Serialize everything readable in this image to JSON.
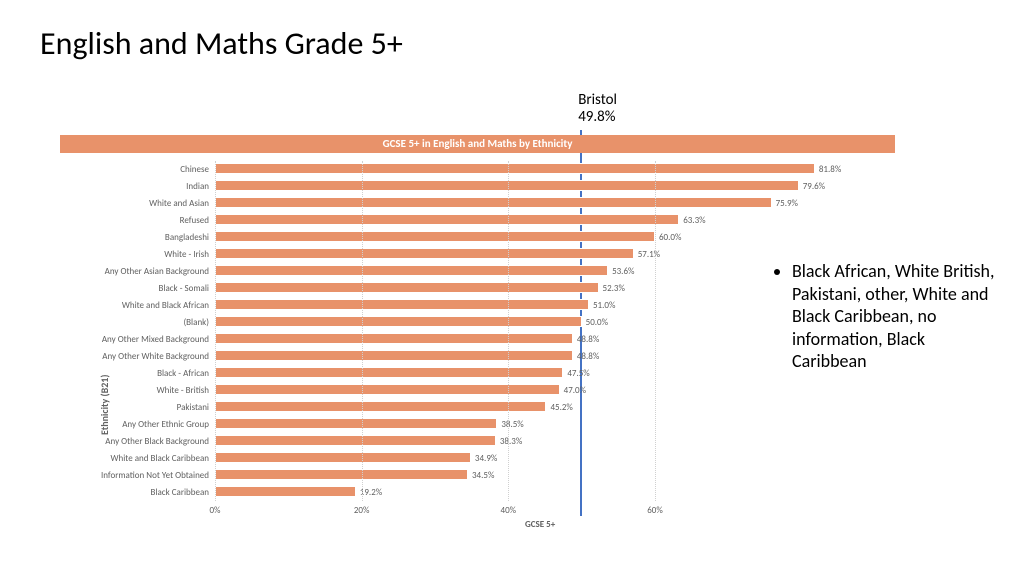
{
  "slide": {
    "title": "English and Maths Grade 5+",
    "title_fontsize": 32,
    "title_color": "#000000"
  },
  "reference": {
    "label_line1": "Bristol",
    "label_line2": "49.8%",
    "value": 49.8,
    "line_color": "#4472c4",
    "line_width": 2
  },
  "chart": {
    "type": "bar-horizontal",
    "title": "GCSE 5+ in English and Maths by Ethnicity",
    "title_bg": "#e8926a",
    "title_color": "#ffffff",
    "title_fontsize": 11,
    "bar_color": "#e8926a",
    "background_color": "#ffffff",
    "grid_color": "#d0d0d0",
    "label_fontsize": 9,
    "label_color": "#606060",
    "y_axis_title": "Ethnicity (B21)",
    "x_axis_title": "GCSE 5+",
    "axis_title_fontsize": 10,
    "axis_title_weight": "bold",
    "xlim": [
      0,
      90
    ],
    "xticks": [
      0,
      20,
      40,
      60
    ],
    "xtick_labels": [
      "0%",
      "20%",
      "40%",
      "60%"
    ],
    "categories": [
      "Chinese",
      "Indian",
      "White and Asian",
      "Refused",
      "Bangladeshi",
      "White - Irish",
      "Any Other Asian Background",
      "Black - Somali",
      "White and Black African",
      "(Blank)",
      "Any Other Mixed Background",
      "Any Other White Background",
      "Black - African",
      "White - British",
      "Pakistani",
      "Any Other Ethnic Group",
      "Any Other Black Background",
      "White and Black Caribbean",
      "Information Not Yet Obtained",
      "Black Caribbean"
    ],
    "values": [
      81.8,
      79.6,
      75.9,
      63.3,
      60.0,
      57.1,
      53.6,
      52.3,
      51.0,
      50.0,
      48.8,
      48.8,
      47.5,
      47.0,
      45.2,
      38.5,
      38.3,
      34.9,
      34.5,
      19.2
    ],
    "value_labels": [
      "81.8%",
      "79.6%",
      "75.9%",
      "63.3%",
      "60.0%",
      "57.1%",
      "53.6%",
      "52.3%",
      "51.0%",
      "50.0%",
      "48.8%",
      "48.8%",
      "47.5%",
      "47.0%",
      "45.2%",
      "38.5%",
      "38.3%",
      "34.9%",
      "34.5%",
      "19.2%"
    ]
  },
  "bullet": {
    "text": "Black African, White British, Pakistani, other, White and Black Caribbean, no information, Black Caribbean",
    "fontsize": 18,
    "color": "#000000"
  }
}
